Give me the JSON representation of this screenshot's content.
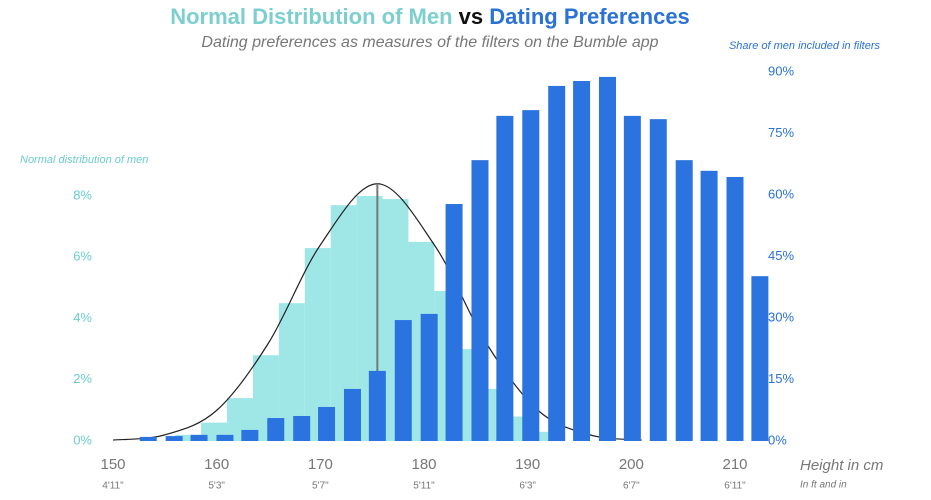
{
  "chart_data": {
    "type": "histogram-bars",
    "title_part1": "Normal Distribution of Men",
    "title_part2": "vs",
    "title_part3": "Dating Preferences",
    "subtitle": "Dating preferences as measures of the filters on the Bumble app",
    "y_label": "Normal distribution of men",
    "y2_label": "Share of men included in filters",
    "x_label": "Height in cm",
    "x_label2": "In ft and in",
    "xlim": [
      150,
      210
    ],
    "xticks": [
      150,
      160,
      170,
      180,
      190,
      200,
      210
    ],
    "xticks_ft": [
      "4'11\"",
      "5'3\"",
      "5'7\"",
      "5'11\"",
      "6'3\"",
      "6'7\"",
      "6'11\""
    ],
    "ylim": [
      0,
      8
    ],
    "yticks": [
      {
        "value": 0,
        "label": "0%"
      },
      {
        "value": 2,
        "label": "2%"
      },
      {
        "value": 4,
        "label": "4%"
      },
      {
        "value": 6,
        "label": "6%"
      },
      {
        "value": 8,
        "label": "8%"
      }
    ],
    "y2lim": [
      0,
      90
    ],
    "y2ticks": [
      {
        "value": 0,
        "label": "0%"
      },
      {
        "value": 15,
        "label": "15%"
      },
      {
        "value": 30,
        "label": "30%"
      },
      {
        "value": 45,
        "label": "45%"
      },
      {
        "value": 60,
        "label": "60%"
      },
      {
        "value": 75,
        "label": "75%"
      },
      {
        "value": 90,
        "label": "90%"
      }
    ],
    "histogram": {
      "color": "#9fe6e6",
      "bins": [
        156,
        158.5,
        161,
        163.5,
        166,
        168.5,
        171,
        173.5,
        176,
        178.5,
        181,
        183.5,
        186,
        188.5,
        191,
        193.5
      ],
      "values": [
        0.2,
        0.6,
        1.4,
        2.8,
        4.5,
        6.3,
        7.7,
        8.0,
        7.9,
        6.5,
        4.9,
        3.0,
        1.7,
        0.8,
        0.3
      ]
    },
    "curve": {
      "color": "#222222",
      "x": [
        150,
        155,
        160,
        165,
        170,
        175.5,
        181,
        186,
        191,
        196,
        201
      ],
      "values": [
        0.03,
        0.2,
        1.0,
        3.2,
        6.4,
        8.4,
        6.4,
        3.2,
        1.0,
        0.2,
        0.03
      ]
    },
    "series": [
      {
        "axis": "y2",
        "color": "#2b74e0",
        "x": [
          153.4,
          155.9,
          158.3,
          160.8,
          163.2,
          165.7,
          168.2,
          170.6,
          173.1,
          175.5,
          178.0,
          180.5,
          182.9,
          185.4,
          187.8,
          190.3,
          192.8,
          195.2,
          197.7,
          200.1,
          202.6,
          205.1,
          207.5,
          210.0,
          212.4
        ],
        "values": [
          1,
          1.2,
          1.5,
          1.5,
          2.7,
          5.6,
          6.1,
          8.3,
          12.7,
          17.1,
          29.5,
          31,
          57.8,
          68.5,
          79.3,
          80.7,
          86.6,
          87.8,
          88.8,
          79.3,
          78.5,
          68.5,
          65.9,
          64.4,
          40.2
        ]
      }
    ]
  }
}
